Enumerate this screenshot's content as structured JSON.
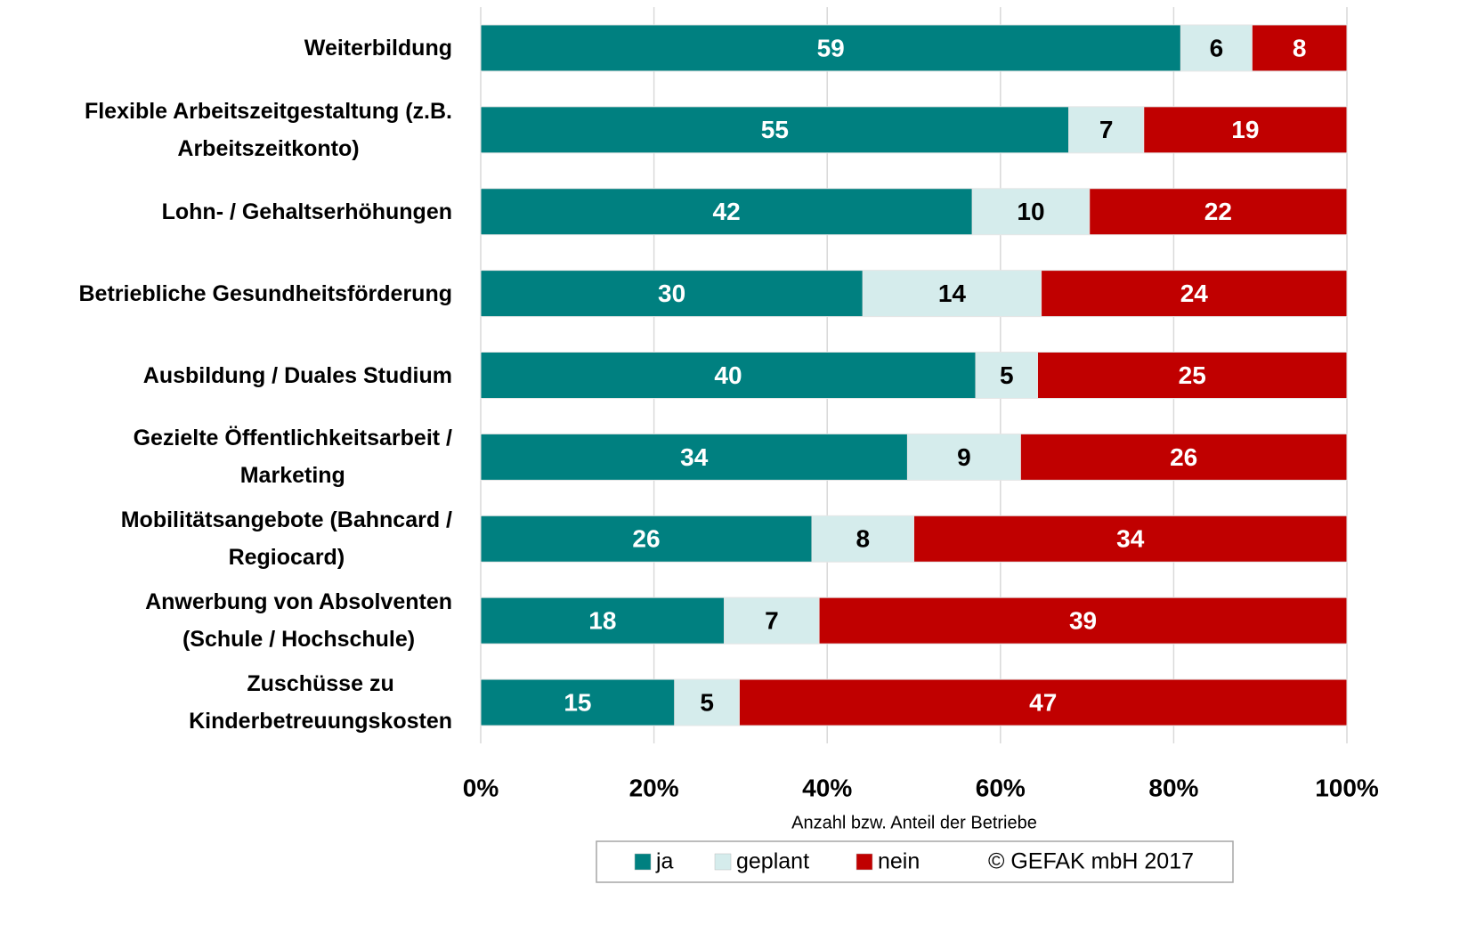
{
  "chart_data": {
    "type": "bar",
    "orientation": "horizontal",
    "stacking": "percent",
    "categories": [
      "Weiterbildung",
      "Flexible Arbeitszeitgestaltung (z.B.\nArbeitszeitkonto)",
      "Lohn- / Gehaltserhöhungen",
      "Betriebliche Gesundheitsförderung",
      "Ausbildung / Duales Studium",
      "Gezielte Öffentlichkeitsarbeit /\nMarketing",
      "Mobilitätsangebote (Bahncard /\nRegiocard)",
      "Anwerbung von Absolventen\n(Schule / Hochschule)",
      "Zuschüsse zu\nKinderbetreuungskosten"
    ],
    "series": [
      {
        "name": "ja",
        "color": "#008080",
        "label_color": "#ffffff",
        "values": [
          59,
          55,
          42,
          30,
          40,
          34,
          26,
          18,
          15
        ]
      },
      {
        "name": "geplant",
        "color": "#d5ecec",
        "label_color": "#000000",
        "values": [
          6,
          7,
          10,
          14,
          5,
          9,
          8,
          7,
          5
        ]
      },
      {
        "name": "nein",
        "color": "#c00000",
        "label_color": "#ffffff",
        "values": [
          8,
          19,
          22,
          24,
          25,
          26,
          34,
          39,
          47
        ]
      }
    ],
    "xlim": [
      0,
      100
    ],
    "xticks": [
      {
        "value": 0,
        "label": "0%"
      },
      {
        "value": 20,
        "label": "20%"
      },
      {
        "value": 40,
        "label": "40%"
      },
      {
        "value": 60,
        "label": "60%"
      },
      {
        "value": 80,
        "label": "80%"
      },
      {
        "value": 100,
        "label": "100%"
      }
    ],
    "xlabel": "Anzahl bzw. Anteil der Betriebe",
    "annotation": "© GEFAK mbH 2017",
    "grid": true,
    "legend": "bottom"
  }
}
